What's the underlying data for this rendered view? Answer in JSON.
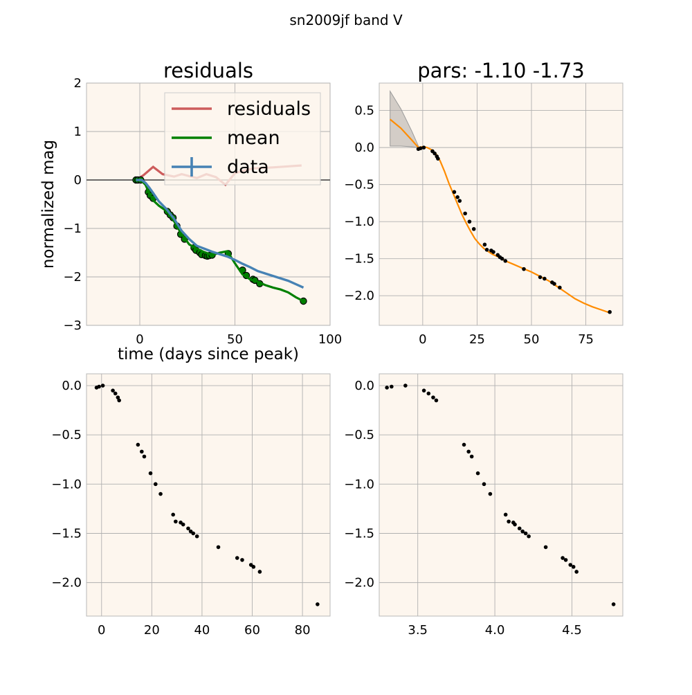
{
  "figure": {
    "suptitle": "sn2009jf band V"
  },
  "colors": {
    "panel_bg": "#fdf6ee",
    "residuals": "#cd5c5c",
    "mean": "#008000",
    "data": "#4682b4",
    "gp": "#ff8c00",
    "points": "#000000",
    "band": "#b0aca8"
  },
  "chart_data": [
    {
      "type": "line",
      "title": "residuals",
      "xlabel": "time (days since peak)",
      "ylabel": "normalized mag",
      "xlim": [
        -28,
        100
      ],
      "ylim": [
        -3,
        2
      ],
      "xticks": [
        0,
        50,
        100
      ],
      "yticks": [
        2,
        1,
        0,
        -1,
        -2,
        -3
      ],
      "grid": true,
      "legend": {
        "placement": "upper-right",
        "entries": [
          "residuals",
          "mean",
          "data"
        ]
      },
      "series": [
        {
          "name": "residuals",
          "x": [
            -2,
            2,
            7,
            12,
            18,
            22,
            26,
            30,
            35,
            40,
            45,
            50,
            55,
            60,
            70,
            85
          ],
          "y": [
            0,
            0.1,
            0.27,
            0.12,
            0.07,
            0.12,
            0.08,
            0.04,
            0.12,
            0.06,
            -0.1,
            0.14,
            0.2,
            0.24,
            0.26,
            0.3
          ]
        },
        {
          "name": "mean",
          "x": [
            -2,
            1,
            3,
            5,
            7,
            10,
            14,
            18,
            22,
            26,
            30,
            34,
            38,
            42,
            46,
            50,
            54,
            58,
            62,
            66,
            70,
            74,
            78,
            82,
            86
          ],
          "y": [
            0,
            -0.02,
            -0.1,
            -0.28,
            -0.42,
            -0.53,
            -0.64,
            -0.85,
            -1.12,
            -1.33,
            -1.42,
            -1.49,
            -1.55,
            -1.5,
            -1.47,
            -1.72,
            -1.95,
            -2.05,
            -2.1,
            -2.17,
            -2.22,
            -2.26,
            -2.32,
            -2.42,
            -2.5
          ]
        },
        {
          "name": "data",
          "x": [
            -2,
            1,
            3,
            5,
            7,
            10,
            14,
            18,
            22,
            26,
            30,
            34,
            38,
            42,
            46,
            50,
            54,
            58,
            62,
            66,
            70,
            74,
            78,
            82,
            86
          ],
          "y": [
            0,
            0,
            -0.06,
            -0.16,
            -0.27,
            -0.44,
            -0.6,
            -0.8,
            -1.05,
            -1.22,
            -1.36,
            -1.42,
            -1.48,
            -1.53,
            -1.58,
            -1.65,
            -1.73,
            -1.8,
            -1.88,
            -1.93,
            -1.98,
            -2.03,
            -2.08,
            -2.15,
            -2.22
          ]
        },
        {
          "name": "",
          "x": [
            -28,
            100
          ],
          "y": [
            0,
            0
          ]
        }
      ],
      "obs_x": [
        -2,
        -1,
        0.5,
        4.5,
        5.5,
        7,
        14.5,
        16,
        17.5,
        19.5,
        21.5,
        23.5,
        28.5,
        29.5,
        31.5,
        32.5,
        34.5,
        35.5,
        36.5,
        38,
        46.5,
        54,
        56,
        59.5,
        60.5,
        63,
        86
      ],
      "obs_y": [
        0,
        0,
        0,
        -0.25,
        -0.32,
        -0.38,
        -0.65,
        -0.72,
        -0.78,
        -0.95,
        -1.12,
        -1.22,
        -1.4,
        -1.45,
        -1.5,
        -1.54,
        -1.56,
        -1.57,
        -1.56,
        -1.55,
        -1.52,
        -1.86,
        -1.97,
        -2.05,
        -2.07,
        -2.14,
        -2.5
      ]
    },
    {
      "type": "line",
      "title": "pars: -1.10 -1.73",
      "xlabel": "",
      "ylabel": "",
      "xlim": [
        -20,
        92
      ],
      "ylim": [
        -2.4,
        0.87
      ],
      "xticks": [
        0,
        25,
        50,
        75
      ],
      "yticks": [
        0.5,
        0.0,
        -0.5,
        -1.0,
        -1.5,
        -2.0
      ],
      "grid": true,
      "series": [
        {
          "name": "",
          "x": [
            -15,
            -10,
            -5,
            -2,
            0,
            2,
            4,
            6,
            8,
            10,
            12,
            14,
            16,
            18,
            20,
            22,
            24,
            26,
            28,
            30,
            32,
            35,
            38,
            42,
            46,
            50,
            54,
            58,
            62,
            66,
            70,
            74,
            78,
            82,
            86
          ],
          "y": [
            0.38,
            0.26,
            0.1,
            0.0,
            0.01,
            0.0,
            -0.03,
            -0.08,
            -0.18,
            -0.32,
            -0.48,
            -0.62,
            -0.76,
            -0.9,
            -1.02,
            -1.13,
            -1.23,
            -1.3,
            -1.36,
            -1.4,
            -1.44,
            -1.48,
            -1.53,
            -1.58,
            -1.63,
            -1.68,
            -1.74,
            -1.8,
            -1.88,
            -1.96,
            -2.04,
            -2.1,
            -2.15,
            -2.19,
            -2.23
          ]
        }
      ],
      "band": {
        "x": [
          -15,
          -10,
          -5,
          -2
        ],
        "upper": [
          0.76,
          0.52,
          0.22,
          0.02
        ],
        "lower": [
          0.02,
          0.02,
          0.01,
          0.0
        ]
      },
      "points_x": [
        -2,
        -1,
        0.5,
        4.5,
        5.5,
        6.5,
        7,
        14.5,
        16,
        17,
        19.5,
        21.5,
        23.5,
        28.5,
        29.5,
        31.5,
        32.5,
        34.5,
        35.5,
        36.5,
        38,
        46.5,
        54,
        56,
        59.5,
        60.5,
        63,
        86
      ],
      "points_y": [
        -0.02,
        -0.01,
        0.0,
        -0.05,
        -0.08,
        -0.12,
        -0.15,
        -0.6,
        -0.67,
        -0.72,
        -0.89,
        -1.0,
        -1.1,
        -1.31,
        -1.38,
        -1.39,
        -1.41,
        -1.45,
        -1.48,
        -1.5,
        -1.53,
        -1.64,
        -1.75,
        -1.77,
        -1.82,
        -1.84,
        -1.89,
        -2.22
      ]
    },
    {
      "type": "scatter",
      "title": "",
      "xlabel": "",
      "ylabel": "",
      "xlim": [
        -6,
        91
      ],
      "ylim": [
        -2.34,
        0.12
      ],
      "xticks": [
        0,
        20,
        40,
        60,
        80
      ],
      "yticks": [
        0.0,
        -0.5,
        -1.0,
        -1.5,
        -2.0
      ],
      "grid": true,
      "x": [
        -2,
        -1,
        0.5,
        4.5,
        5.5,
        6.5,
        7,
        14.5,
        16,
        17,
        19.5,
        21.5,
        23.5,
        28.5,
        29.5,
        31.5,
        32.5,
        34.5,
        35.5,
        36.5,
        38,
        46.5,
        54,
        56,
        59.5,
        60.5,
        63,
        86
      ],
      "y": [
        -0.02,
        -0.01,
        0.0,
        -0.05,
        -0.08,
        -0.12,
        -0.15,
        -0.6,
        -0.67,
        -0.72,
        -0.89,
        -1.0,
        -1.1,
        -1.31,
        -1.38,
        -1.39,
        -1.41,
        -1.45,
        -1.48,
        -1.5,
        -1.53,
        -1.64,
        -1.75,
        -1.77,
        -1.82,
        -1.84,
        -1.89,
        -2.22
      ]
    },
    {
      "type": "scatter",
      "title": "",
      "xlabel": "",
      "ylabel": "",
      "xlim": [
        3.25,
        4.83
      ],
      "ylim": [
        -2.34,
        0.12
      ],
      "xticks": [
        3.5,
        4.0,
        4.5
      ],
      "xtick_labels": [
        "3.5",
        "4.0",
        "4.5"
      ],
      "yticks": [
        0.0,
        -0.5,
        -1.0,
        -1.5,
        -2.0
      ],
      "grid": true,
      "x": [
        3.3,
        3.33,
        3.42,
        3.54,
        3.57,
        3.6,
        3.62,
        3.8,
        3.83,
        3.85,
        3.89,
        3.93,
        3.97,
        4.07,
        4.09,
        4.12,
        4.13,
        4.16,
        4.18,
        4.2,
        4.22,
        4.33,
        4.44,
        4.46,
        4.49,
        4.51,
        4.53,
        4.77
      ],
      "y": [
        -0.02,
        -0.01,
        0.0,
        -0.05,
        -0.08,
        -0.12,
        -0.15,
        -0.6,
        -0.67,
        -0.72,
        -0.89,
        -1.0,
        -1.1,
        -1.31,
        -1.38,
        -1.39,
        -1.41,
        -1.45,
        -1.48,
        -1.5,
        -1.53,
        -1.64,
        -1.75,
        -1.77,
        -1.82,
        -1.84,
        -1.89,
        -2.22
      ]
    }
  ]
}
